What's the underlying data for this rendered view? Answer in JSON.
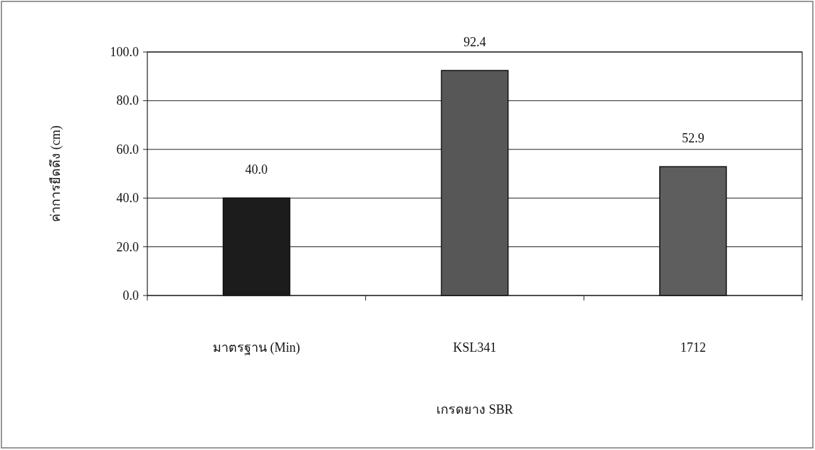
{
  "chart_data": {
    "type": "bar",
    "xlabel": "เกรดยาง SBR",
    "ylabel": "ค่าการยืดดึง (cm)",
    "categories": [
      "มาตรฐาน (Min)",
      "KSL341",
      "1712"
    ],
    "values": [
      40.0,
      92.4,
      52.9
    ],
    "colors": [
      "#1c1c1c",
      "#575757",
      "#5e5e5e"
    ],
    "value_labels": [
      "40.0",
      "92.4",
      "52.9"
    ],
    "ylim": [
      0,
      100
    ],
    "yticks": [
      {
        "value": 0,
        "label": "0.0"
      },
      {
        "value": 20,
        "label": "20.0"
      },
      {
        "value": 40,
        "label": "40.0"
      },
      {
        "value": 60,
        "label": "60.0"
      },
      {
        "value": 80,
        "label": "80.0"
      },
      {
        "value": 100,
        "label": "100.0"
      }
    ],
    "grid": "y"
  }
}
